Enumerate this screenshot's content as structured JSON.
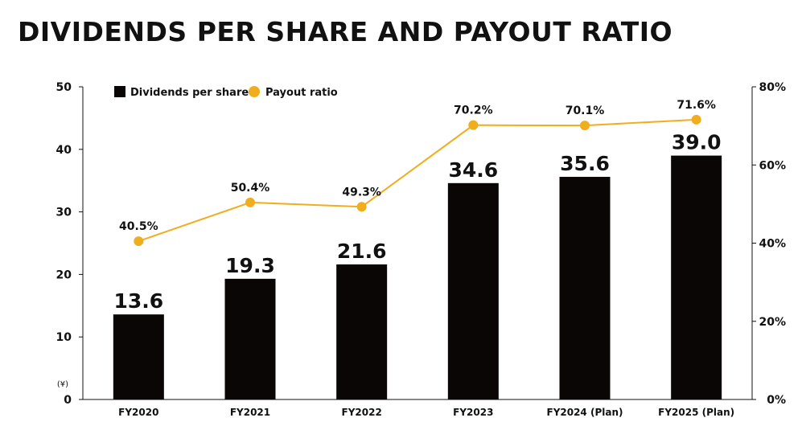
{
  "title": "DIVIDENDS PER SHARE AND PAYOUT RATIO",
  "chart_data": {
    "type": "bar",
    "categories": [
      "FY2020",
      "FY2021",
      "FY2022",
      "FY2023",
      "FY2024 (Plan)",
      "FY2025 (Plan)"
    ],
    "series": [
      {
        "name": "Dividends per share",
        "type": "bar",
        "axis": "left",
        "values": [
          13.6,
          19.3,
          21.6,
          34.6,
          35.6,
          39.0
        ],
        "labels": [
          "13.6",
          "19.3",
          "21.6",
          "34.6",
          "35.6",
          "39.0"
        ],
        "color": "#0b0606"
      },
      {
        "name": "Payout ratio",
        "type": "line",
        "axis": "right",
        "values": [
          40.5,
          50.4,
          49.3,
          70.2,
          70.1,
          71.6
        ],
        "labels": [
          "40.5%",
          "50.4%",
          "49.3%",
          "70.2%",
          "70.1%",
          "71.6%"
        ],
        "color": "#f0ad1e"
      }
    ],
    "y_left": {
      "unit": "(¥)",
      "ylim": [
        0,
        50
      ],
      "ticks": [
        "0",
        "10",
        "20",
        "30",
        "40",
        "50"
      ]
    },
    "y_right": {
      "ylim": [
        0,
        80
      ],
      "ticks": [
        "0%",
        "20%",
        "40%",
        "60%",
        "80%"
      ]
    },
    "grid": false,
    "legend_position": "top-left"
  }
}
